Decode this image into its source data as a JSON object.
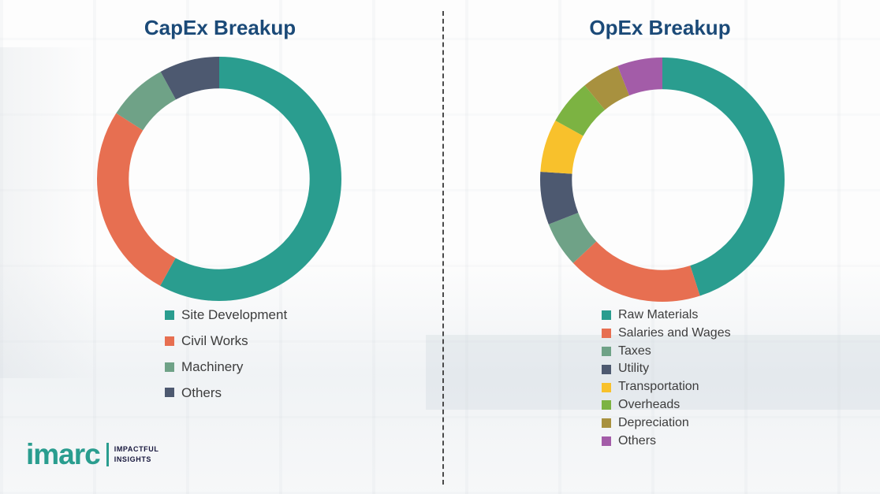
{
  "page": {
    "background_color": "#fdfdfd",
    "divider_style": "vertical-dashed",
    "divider_color": "#4a4a4a"
  },
  "theme": {
    "title_color": "#1b4a78",
    "legend_text_color": "#3d3d3d",
    "brand_teal": "#2a9d8f"
  },
  "chart_data": [
    {
      "type": "pie",
      "variant": "donut",
      "title": "CapEx Breakup",
      "labels": [
        "Site Development",
        "Civil Works",
        "Machinery",
        "Others"
      ],
      "values": [
        58,
        26,
        8,
        8
      ],
      "colors": [
        "#2a9d8f",
        "#e76f51",
        "#6fa287",
        "#4d5970"
      ],
      "values_note": "segment shares (%) estimated from arc angles; no numeric labels shown in image",
      "legend_position": "below-chart",
      "start_angle": "top",
      "direction": "clockwise"
    },
    {
      "type": "pie",
      "variant": "donut",
      "title": "OpEx Breakup",
      "labels": [
        "Raw Materials",
        "Salaries and Wages",
        "Taxes",
        "Utility",
        "Transportation",
        "Overheads",
        "Depreciation",
        "Others"
      ],
      "values": [
        45,
        18,
        6,
        7,
        7,
        6,
        5,
        6
      ],
      "colors": [
        "#2a9d8f",
        "#e76f51",
        "#6fa287",
        "#4d5970",
        "#f8c12c",
        "#7cb342",
        "#a8913f",
        "#a35ca8"
      ],
      "values_note": "segment shares (%) estimated from arc angles; no numeric labels shown in image",
      "legend_position": "below-chart",
      "start_angle": "top",
      "direction": "clockwise"
    }
  ],
  "logo": {
    "brand": "imarc",
    "tagline_line1": "IMPACTFUL",
    "tagline_line2": "INSIGHTS"
  }
}
